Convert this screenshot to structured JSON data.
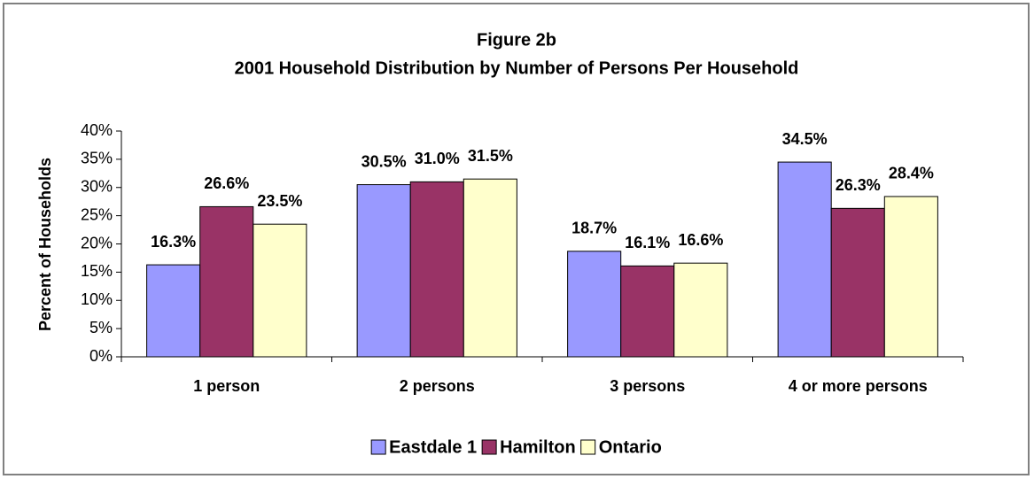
{
  "chart_data": {
    "type": "bar",
    "title": "Figure 2b",
    "subtitle": "2001 Household Distribution by Number of Persons Per Household",
    "y_label": "Percent of Households",
    "categories": [
      "1 person",
      "2 persons",
      "3 persons",
      "4 or more persons"
    ],
    "series": [
      {
        "name": "Eastdale 1",
        "color": "#9999ff",
        "values": [
          16.3,
          30.5,
          18.7,
          34.5
        ],
        "value_labels": [
          "16.3%",
          "30.5%",
          "18.7%",
          "34.5%"
        ]
      },
      {
        "name": "Hamilton",
        "color": "#993366",
        "values": [
          26.6,
          31.0,
          16.1,
          26.3
        ],
        "value_labels": [
          "26.6%",
          "31.0%",
          "16.1%",
          "26.3%"
        ]
      },
      {
        "name": "Ontario",
        "color": "#ffffcc",
        "values": [
          23.5,
          31.5,
          16.6,
          28.4
        ],
        "value_labels": [
          "23.5%",
          "31.5%",
          "16.6%",
          "28.4%"
        ]
      }
    ],
    "ylim": [
      0,
      40
    ],
    "yticks": [
      {
        "value": 0,
        "label": "0%"
      },
      {
        "value": 5,
        "label": "5%"
      },
      {
        "value": 10,
        "label": "10%"
      },
      {
        "value": 15,
        "label": "15%"
      },
      {
        "value": 20,
        "label": "20%"
      },
      {
        "value": 25,
        "label": "25%"
      },
      {
        "value": 30,
        "label": "30%"
      },
      {
        "value": 35,
        "label": "35%"
      },
      {
        "value": 40,
        "label": "40%"
      }
    ],
    "grid": false,
    "legend": "bottom"
  }
}
